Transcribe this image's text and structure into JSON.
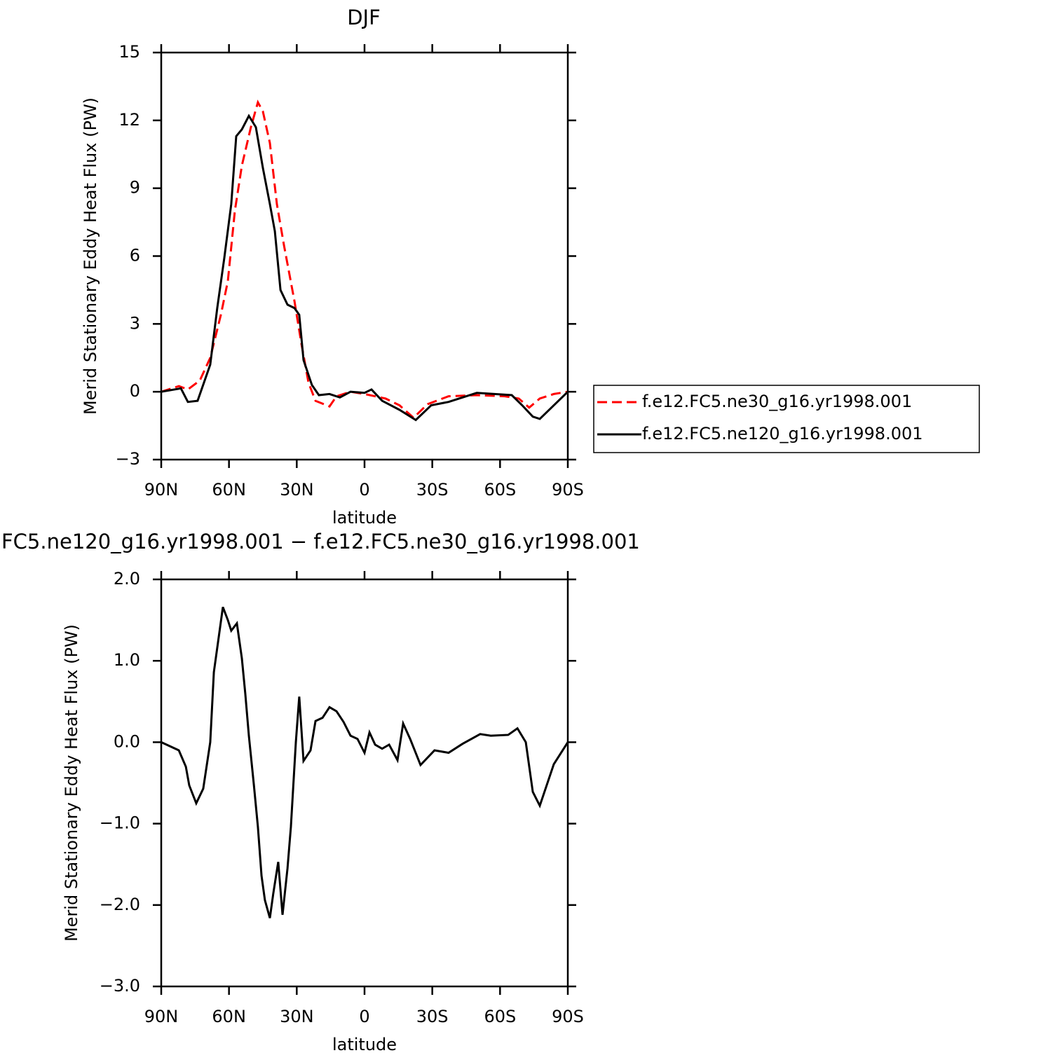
{
  "chart_data": [
    {
      "type": "line",
      "title": "DJF",
      "xlabel": "latitude",
      "ylabel": "Merid Stationary Eddy Heat Flux (PW)",
      "xlim": [
        90,
        -90
      ],
      "ylim": [
        -3,
        15
      ],
      "xticks": [
        {
          "value": 90,
          "label": "90N"
        },
        {
          "value": 60,
          "label": "60N"
        },
        {
          "value": 30,
          "label": "30N"
        },
        0,
        {
          "value": -30,
          "label": "30S"
        },
        {
          "value": -60,
          "label": "60S"
        },
        {
          "value": -90,
          "label": "90S"
        }
      ],
      "yticks": [
        {
          "value": -3,
          "label": "−3"
        },
        0,
        3,
        6,
        9,
        12,
        15
      ],
      "legend": "right",
      "series": [
        {
          "name": "f.e12.FC5.ne30_g16.yr1998.001",
          "color": "#ff0000",
          "dashed": true,
          "x": [
            90,
            82.2,
            78.2,
            72.9,
            68.3,
            63.6,
            60.5,
            57.4,
            54.3,
            50.3,
            47.2,
            45,
            41.9,
            38.8,
            35.7,
            31,
            27.9,
            24.8,
            21.7,
            15.5,
            12.4,
            6.2,
            0,
            -9.3,
            -15.5,
            -21.7,
            -27.9,
            -37.2,
            -49.7,
            -62.1,
            -68.3,
            -72.9,
            -77.6,
            -83.8,
            -90
          ],
          "values": [
            0,
            0.25,
            0.1,
            0.5,
            1.5,
            3.4,
            4.9,
            8,
            10,
            11.7,
            12.8,
            12.4,
            11,
            8.3,
            6.5,
            4,
            2.1,
            0.4,
            -0.4,
            -0.65,
            -0.2,
            0,
            -0.1,
            -0.3,
            -0.6,
            -1.15,
            -0.55,
            -0.2,
            -0.15,
            -0.2,
            -0.3,
            -0.7,
            -0.3,
            -0.1,
            0
          ]
        },
        {
          "name": "f.e12.FC5.ne120_g16.yr1998.001",
          "color": "#000000",
          "dashed": false,
          "x": [
            90,
            81.3,
            78.2,
            73.9,
            68.3,
            65.2,
            62.1,
            59,
            56.8,
            54.3,
            51.2,
            48.1,
            45,
            41.9,
            39.7,
            37.2,
            34.1,
            31,
            28.9,
            27,
            23.3,
            20.2,
            15.5,
            10.9,
            6.2,
            0,
            -3.1,
            -7.8,
            -15.5,
            -22.7,
            -29.5,
            -37.2,
            -49.7,
            -65.2,
            -69.8,
            -74.5,
            -77.6,
            -83.8,
            -90
          ],
          "values": [
            0,
            0.15,
            -0.45,
            -0.4,
            1.2,
            3.7,
            5.9,
            8.3,
            11.3,
            11.6,
            12.2,
            11.7,
            9.9,
            8.3,
            7.1,
            4.5,
            3.85,
            3.7,
            3.4,
            1.4,
            0.3,
            -0.15,
            -0.1,
            -0.25,
            0,
            -0.05,
            0.1,
            -0.4,
            -0.8,
            -1.25,
            -0.6,
            -0.45,
            -0.05,
            -0.15,
            -0.6,
            -1.1,
            -1.2,
            -0.6,
            0
          ]
        }
      ]
    },
    {
      "type": "line",
      "title": "FC5.ne120_g16.yr1998.001 − f.e12.FC5.ne30_g16.yr1998.001",
      "xlabel": "latitude",
      "ylabel": "Merid Stationary Eddy Heat Flux (PW)",
      "xlim": [
        90,
        -90
      ],
      "ylim": [
        -3,
        2
      ],
      "xticks": [
        {
          "value": 90,
          "label": "90N"
        },
        {
          "value": 60,
          "label": "60N"
        },
        {
          "value": 30,
          "label": "30N"
        },
        0,
        {
          "value": -30,
          "label": "30S"
        },
        {
          "value": -60,
          "label": "60S"
        },
        {
          "value": -90,
          "label": "90S"
        }
      ],
      "yticks": [
        {
          "value": -3,
          "label": "−3.0"
        },
        {
          "value": -2,
          "label": "−2.0"
        },
        {
          "value": -1,
          "label": "−1.0"
        },
        {
          "value": 0,
          "label": "0.0"
        },
        {
          "value": 1,
          "label": "1.0"
        },
        {
          "value": 2,
          "label": "2.0"
        }
      ],
      "series": [
        {
          "color": "#000000",
          "dashed": false,
          "x": [
            90,
            82.2,
            79.1,
            77.6,
            74.5,
            71.4,
            68.3,
            66.7,
            62.7,
            60.5,
            59,
            56.5,
            54.3,
            52.8,
            51.2,
            49,
            47.2,
            45.6,
            44.1,
            41.9,
            40.4,
            38.2,
            36.3,
            34.1,
            32.6,
            30.4,
            28.9,
            27,
            23.9,
            21.7,
            18.6,
            15.5,
            12.4,
            9.3,
            6.2,
            3.1,
            0,
            -2.2,
            -4.7,
            -7.8,
            -10.9,
            -14.6,
            -17.1,
            -20.2,
            -24.8,
            -31,
            -37.2,
            -43.4,
            -51.2,
            -55.9,
            -63.6,
            -67.7,
            -71.4,
            -74.5,
            -77.6,
            -83.8,
            -90
          ],
          "values": [
            0,
            -0.1,
            -0.3,
            -0.53,
            -0.75,
            -0.57,
            0,
            0.86,
            1.66,
            1.5,
            1.37,
            1.46,
            1.03,
            0.6,
            0.08,
            -0.52,
            -1.04,
            -1.64,
            -1.94,
            -2.16,
            -1.86,
            -1.47,
            -2.12,
            -1.55,
            -1.04,
            0,
            0.56,
            -0.23,
            -0.1,
            0.26,
            0.3,
            0.43,
            0.38,
            0.25,
            0.08,
            0.04,
            -0.13,
            0.12,
            -0.03,
            -0.08,
            -0.03,
            -0.22,
            0.23,
            0.04,
            -0.28,
            -0.1,
            -0.13,
            -0.02,
            0.1,
            0.08,
            0.09,
            0.17,
            0,
            -0.61,
            -0.78,
            -0.27,
            0
          ]
        }
      ]
    }
  ]
}
